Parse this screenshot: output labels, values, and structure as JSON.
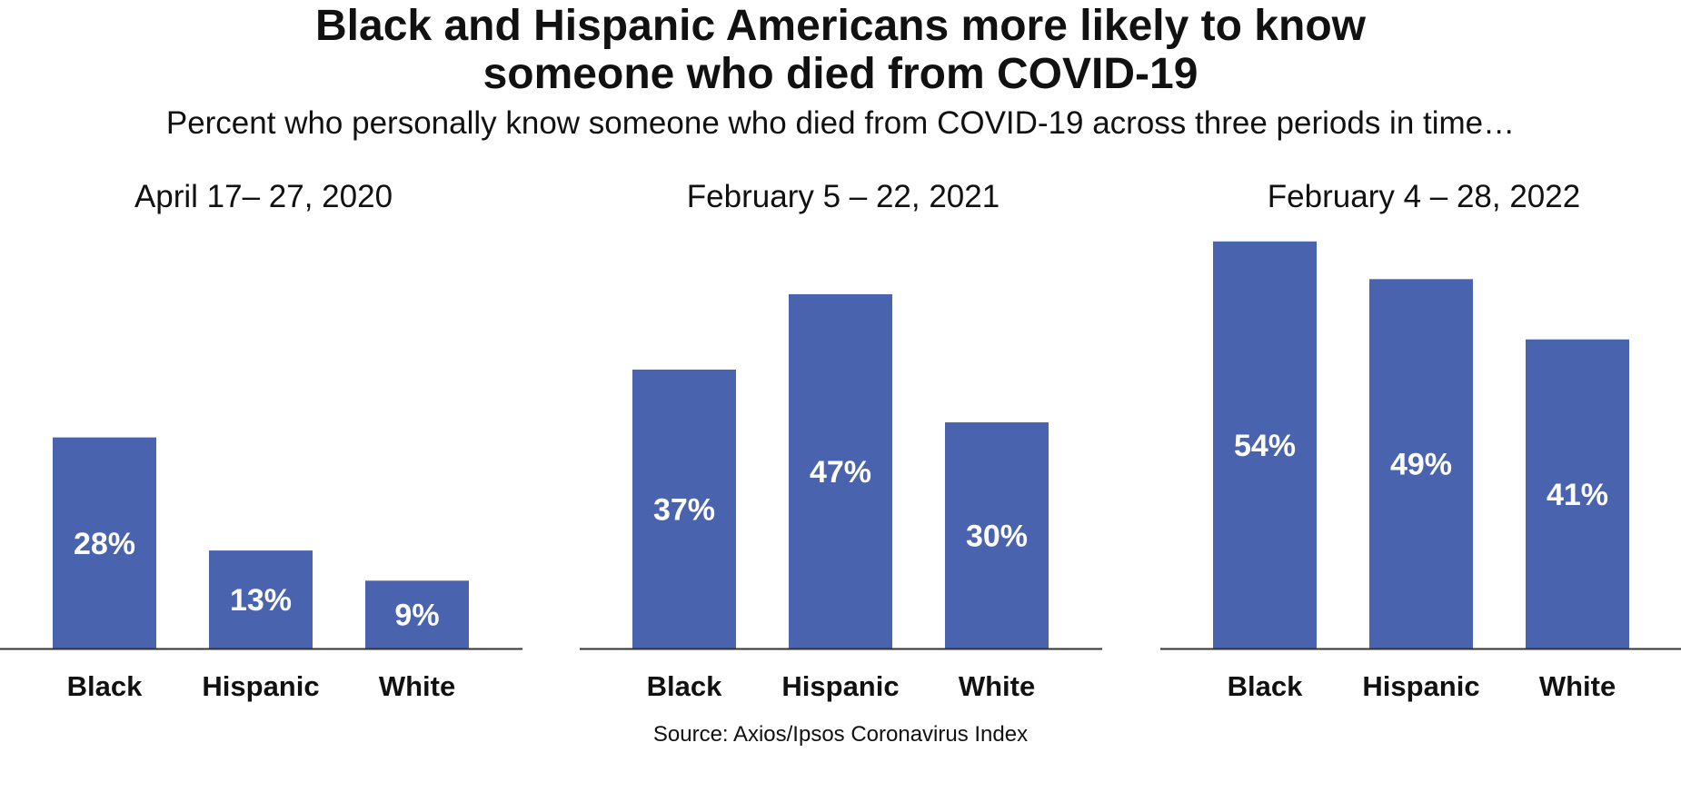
{
  "title_lines": [
    "Black and Hispanic Americans more likely to know",
    "someone who died from COVID-19"
  ],
  "subtitle": "Percent who personally know someone who died from COVID-19 across three periods in time…",
  "source": "Source: Axios/Ipsos Coronavirus Index",
  "colors": {
    "bar": "#4a63ae",
    "label": "#ffffff",
    "axis": "#333333",
    "text": "#111111"
  },
  "chart_data": [
    {
      "type": "bar",
      "title": "April 17– 27, 2020",
      "categories": [
        "Black",
        "Hispanic",
        "White"
      ],
      "values": [
        28,
        13,
        9
      ],
      "value_labels": [
        "28%",
        "13%",
        "9%"
      ],
      "ylim": [
        0,
        55
      ],
      "grid": false
    },
    {
      "type": "bar",
      "title": "February 5 – 22, 2021",
      "categories": [
        "Black",
        "Hispanic",
        "White"
      ],
      "values": [
        37,
        47,
        30
      ],
      "value_labels": [
        "37%",
        "47%",
        "30%"
      ],
      "ylim": [
        0,
        55
      ],
      "grid": false
    },
    {
      "type": "bar",
      "title": "February 4 – 28, 2022",
      "categories": [
        "Black",
        "Hispanic",
        "White"
      ],
      "values": [
        54,
        49,
        41
      ],
      "value_labels": [
        "54%",
        "49%",
        "41%"
      ],
      "ylim": [
        0,
        55
      ],
      "grid": false
    }
  ]
}
